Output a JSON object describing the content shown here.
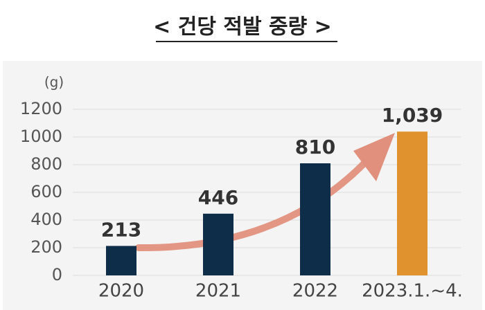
{
  "chart_data": {
    "type": "bar",
    "title": "< 건당 적발 중량 >",
    "y_label": "(g)",
    "categories": [
      "2020",
      "2021",
      "2022",
      "2023.1.~4."
    ],
    "values": [
      213,
      446,
      810,
      1039
    ],
    "value_labels": [
      "213",
      "446",
      "810",
      "1,039"
    ],
    "colors": [
      "#0e2d48",
      "#0e2d48",
      "#0e2d48",
      "#e0922e"
    ],
    "ylim": [
      0,
      1200
    ],
    "yticks": [
      0,
      200,
      400,
      600,
      800,
      1000,
      1200
    ],
    "grid": true
  }
}
